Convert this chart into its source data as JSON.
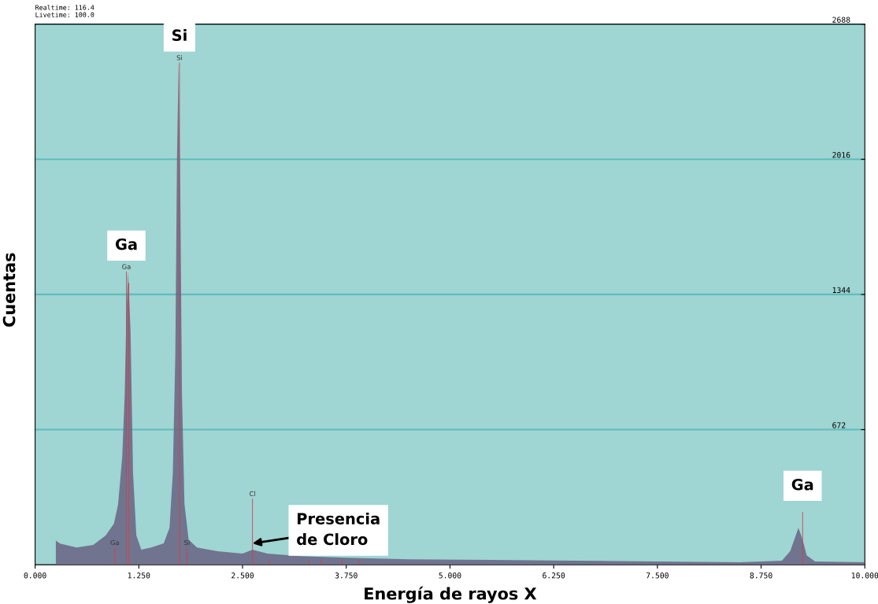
{
  "chart_data": {
    "type": "area",
    "xlabel": "Energía de rayos X",
    "ylabel": "Cuentas",
    "xlim": [
      0,
      10
    ],
    "ylim": [
      0,
      2688
    ],
    "xticks": [
      {
        "value": 0,
        "label": "0.000"
      },
      {
        "value": 1.25,
        "label": "1.250"
      },
      {
        "value": 2.5,
        "label": "2.500"
      },
      {
        "value": 3.75,
        "label": "3.750"
      },
      {
        "value": 5,
        "label": "5.000"
      },
      {
        "value": 6.25,
        "label": "6.250"
      },
      {
        "value": 7.5,
        "label": "7.500"
      },
      {
        "value": 8.75,
        "label": "8.750"
      },
      {
        "value": 10,
        "label": "10.000"
      }
    ],
    "yticks": [
      672,
      1344,
      2016,
      2688
    ],
    "grid": "y",
    "series": [
      {
        "color": "#6b6784",
        "x": [
          0.25,
          0.3,
          0.5,
          0.7,
          0.85,
          0.95,
          1.0,
          1.05,
          1.08,
          1.1,
          1.12,
          1.15,
          1.18,
          1.22,
          1.28,
          1.4,
          1.55,
          1.62,
          1.66,
          1.69,
          1.71,
          1.73,
          1.75,
          1.77,
          1.8,
          1.85,
          1.95,
          2.2,
          2.5,
          2.62,
          2.8,
          3.2,
          3.75,
          4.5,
          5.5,
          6.5,
          7.5,
          8.5,
          9.0,
          9.1,
          9.15,
          9.2,
          9.25,
          9.3,
          9.4,
          10.0
        ],
        "values": [
          120,
          105,
          86,
          98,
          145,
          204,
          300,
          537,
          850,
          1243,
          1458,
          1164,
          459,
          145,
          75,
          86,
          106,
          184,
          459,
          1047,
          2027,
          2497,
          1831,
          850,
          302,
          125,
          86,
          67,
          55,
          75,
          55,
          43,
          35,
          27,
          24,
          20,
          16,
          12,
          20,
          67,
          125,
          184,
          125,
          47,
          16,
          12
        ]
      },
      {
        "type": "bar",
        "color": "#d0404a",
        "x": [
          0.96,
          1.1,
          1.13,
          1.74,
          1.83,
          2.62,
          2.82,
          3.3,
          3.45,
          3.7,
          3.9,
          9.25
        ],
        "values": [
          86,
          1458,
          1400,
          2497,
          86,
          329,
          25,
          25,
          25,
          25,
          25,
          263
        ],
        "value_labels": [
          "Ga",
          "Ga",
          null,
          "Si",
          "Si",
          "Cl",
          null,
          null,
          null,
          null,
          null,
          null
        ]
      }
    ],
    "annotations": [
      "Realtime: 116.4",
      "Livetime: 100.0",
      {
        "text": "Ga",
        "x": 1.1,
        "y": 1458
      },
      {
        "text": "Si",
        "x": 1.74,
        "y": 2497
      },
      {
        "text": "Ga",
        "x": 9.25,
        "y": 263
      },
      {
        "text": "Presencia\nde Cloro",
        "x": 2.62,
        "y": 106
      }
    ]
  }
}
